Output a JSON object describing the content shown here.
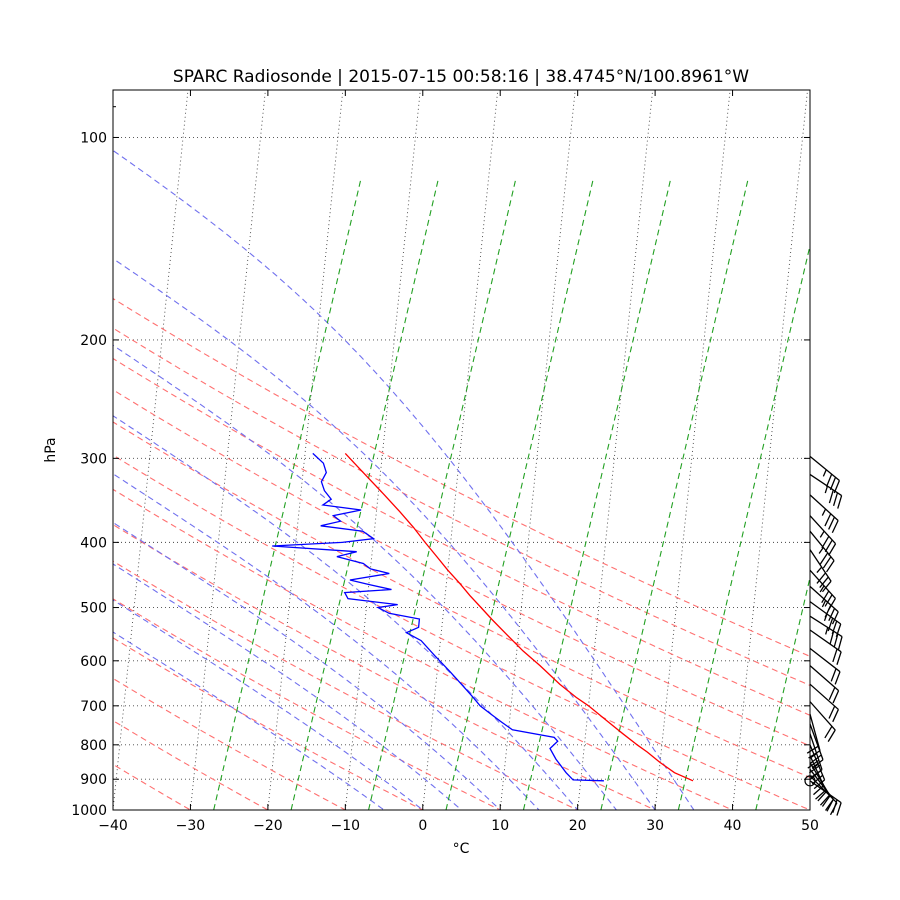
{
  "chart_data": {
    "type": "skew-t",
    "title": "SPARC Radiosonde | 2015-07-15 00:58:16 | 38.4745°N/100.8961°W",
    "xlabel": "°C",
    "ylabel": "hPa",
    "xlim": [
      -40,
      50
    ],
    "ylim_hpa": [
      1000,
      85
    ],
    "x_ticks": [
      -40,
      -30,
      -20,
      -10,
      0,
      10,
      20,
      30,
      40,
      50
    ],
    "x_tick_labels": [
      "−40",
      "−30",
      "−20",
      "−10",
      "0",
      "10",
      "20",
      "30",
      "40",
      "50"
    ],
    "y_ticks": [
      100,
      200,
      300,
      400,
      500,
      600,
      700,
      800,
      900,
      1000
    ],
    "y_tick_labels": [
      "100",
      "200",
      "300",
      "400",
      "500",
      "600",
      "700",
      "800",
      "900",
      "1000"
    ],
    "colors": {
      "temperature": "#ff0000",
      "dewpoint": "#0000ff",
      "dry_adiabat": "#ff7070",
      "moist_adiabat": "#7070ee",
      "mixing_ratio": "#22a022",
      "isotherm_grid": "#444444",
      "wind_barb": "#000000"
    },
    "dry_adiabats_C_at_1000": [
      -30,
      -20,
      -10,
      0,
      10,
      20,
      30,
      40,
      50,
      60,
      70,
      80,
      90,
      100
    ],
    "moist_adiabats_C_at_1000": [
      -5,
      0,
      5,
      10,
      15,
      20,
      25,
      30,
      35
    ],
    "mixing_ratio_C_at_1000": [
      -27,
      -17,
      -7,
      3,
      13,
      23,
      33,
      43
    ],
    "temperature_profile": [
      {
        "p": 905,
        "t": 34.5
      },
      {
        "p": 900,
        "t": 34.0
      },
      {
        "p": 880,
        "t": 32.0
      },
      {
        "p": 850,
        "t": 30.0
      },
      {
        "p": 820,
        "t": 28.2
      },
      {
        "p": 800,
        "t": 26.8
      },
      {
        "p": 770,
        "t": 24.8
      },
      {
        "p": 740,
        "t": 22.8
      },
      {
        "p": 700,
        "t": 20.0
      },
      {
        "p": 680,
        "t": 18.3
      },
      {
        "p": 650,
        "t": 16.0
      },
      {
        "p": 610,
        "t": 13.2
      },
      {
        "p": 580,
        "t": 10.8
      },
      {
        "p": 550,
        "t": 8.6
      },
      {
        "p": 520,
        "t": 6.3
      },
      {
        "p": 500,
        "t": 4.8
      },
      {
        "p": 480,
        "t": 3.2
      },
      {
        "p": 460,
        "t": 1.7
      },
      {
        "p": 440,
        "t": 0.0
      },
      {
        "p": 420,
        "t": -1.6
      },
      {
        "p": 400,
        "t": -3.3
      },
      {
        "p": 380,
        "t": -5.0
      },
      {
        "p": 360,
        "t": -7.0
      },
      {
        "p": 340,
        "t": -9.2
      },
      {
        "p": 320,
        "t": -11.6
      },
      {
        "p": 305,
        "t": -13.5
      },
      {
        "p": 295,
        "t": -14.8
      }
    ],
    "dewpoint_profile": [
      {
        "p": 905,
        "t": 23.0
      },
      {
        "p": 902,
        "t": 19.0
      },
      {
        "p": 880,
        "t": 18.0
      },
      {
        "p": 840,
        "t": 16.5
      },
      {
        "p": 810,
        "t": 15.6
      },
      {
        "p": 790,
        "t": 16.5
      },
      {
        "p": 780,
        "t": 16.0
      },
      {
        "p": 760,
        "t": 10.5
      },
      {
        "p": 740,
        "t": 9.0
      },
      {
        "p": 720,
        "t": 7.5
      },
      {
        "p": 700,
        "t": 6.0
      },
      {
        "p": 680,
        "t": 5.0
      },
      {
        "p": 650,
        "t": 3.3
      },
      {
        "p": 620,
        "t": 1.5
      },
      {
        "p": 590,
        "t": -0.5
      },
      {
        "p": 560,
        "t": -2.5
      },
      {
        "p": 545,
        "t": -4.5
      },
      {
        "p": 535,
        "t": -3.0
      },
      {
        "p": 520,
        "t": -3.0
      },
      {
        "p": 510,
        "t": -7.0
      },
      {
        "p": 500,
        "t": -8.5
      },
      {
        "p": 495,
        "t": -6.0
      },
      {
        "p": 485,
        "t": -12.5
      },
      {
        "p": 475,
        "t": -13.0
      },
      {
        "p": 470,
        "t": -7.0
      },
      {
        "p": 462,
        "t": -10.0
      },
      {
        "p": 455,
        "t": -12.5
      },
      {
        "p": 445,
        "t": -7.5
      },
      {
        "p": 438,
        "t": -10.0
      },
      {
        "p": 430,
        "t": -11.0
      },
      {
        "p": 420,
        "t": -14.5
      },
      {
        "p": 413,
        "t": -12.0
      },
      {
        "p": 405,
        "t": -23.0
      },
      {
        "p": 400,
        "t": -14.0
      },
      {
        "p": 395,
        "t": -10.0
      },
      {
        "p": 385,
        "t": -11.5
      },
      {
        "p": 378,
        "t": -17.0
      },
      {
        "p": 372,
        "t": -14.5
      },
      {
        "p": 365,
        "t": -15.5
      },
      {
        "p": 358,
        "t": -12.0
      },
      {
        "p": 352,
        "t": -17.0
      },
      {
        "p": 345,
        "t": -16.0
      },
      {
        "p": 335,
        "t": -17.0
      },
      {
        "p": 325,
        "t": -17.5
      },
      {
        "p": 315,
        "t": -17.0
      },
      {
        "p": 305,
        "t": -17.5
      },
      {
        "p": 295,
        "t": -19.0
      }
    ],
    "wind_barbs": [
      {
        "p": 298,
        "u": -22,
        "v": 18
      },
      {
        "p": 317,
        "u": -24,
        "v": 16
      },
      {
        "p": 340,
        "u": -22,
        "v": 20
      },
      {
        "p": 365,
        "u": -20,
        "v": 22
      },
      {
        "p": 385,
        "u": -18,
        "v": 22
      },
      {
        "p": 410,
        "u": -16,
        "v": 24
      },
      {
        "p": 440,
        "u": -18,
        "v": 20
      },
      {
        "p": 465,
        "u": -20,
        "v": 18
      },
      {
        "p": 490,
        "u": -22,
        "v": 16
      },
      {
        "p": 515,
        "u": -22,
        "v": 14
      },
      {
        "p": 540,
        "u": -20,
        "v": 14
      },
      {
        "p": 575,
        "u": -18,
        "v": 14
      },
      {
        "p": 610,
        "u": -16,
        "v": 14
      },
      {
        "p": 650,
        "u": -18,
        "v": 16
      },
      {
        "p": 690,
        "u": -16,
        "v": 18
      },
      {
        "p": 720,
        "u": -6,
        "v": 22
      },
      {
        "p": 745,
        "u": -8,
        "v": 22
      },
      {
        "p": 770,
        "u": -8,
        "v": 24
      },
      {
        "p": 800,
        "u": -10,
        "v": 24
      },
      {
        "p": 830,
        "u": -10,
        "v": 22
      },
      {
        "p": 850,
        "u": -12,
        "v": 20
      },
      {
        "p": 870,
        "u": -14,
        "v": 18
      },
      {
        "p": 890,
        "u": -16,
        "v": 16
      },
      {
        "p": 905,
        "u": -20,
        "v": 14
      }
    ]
  }
}
